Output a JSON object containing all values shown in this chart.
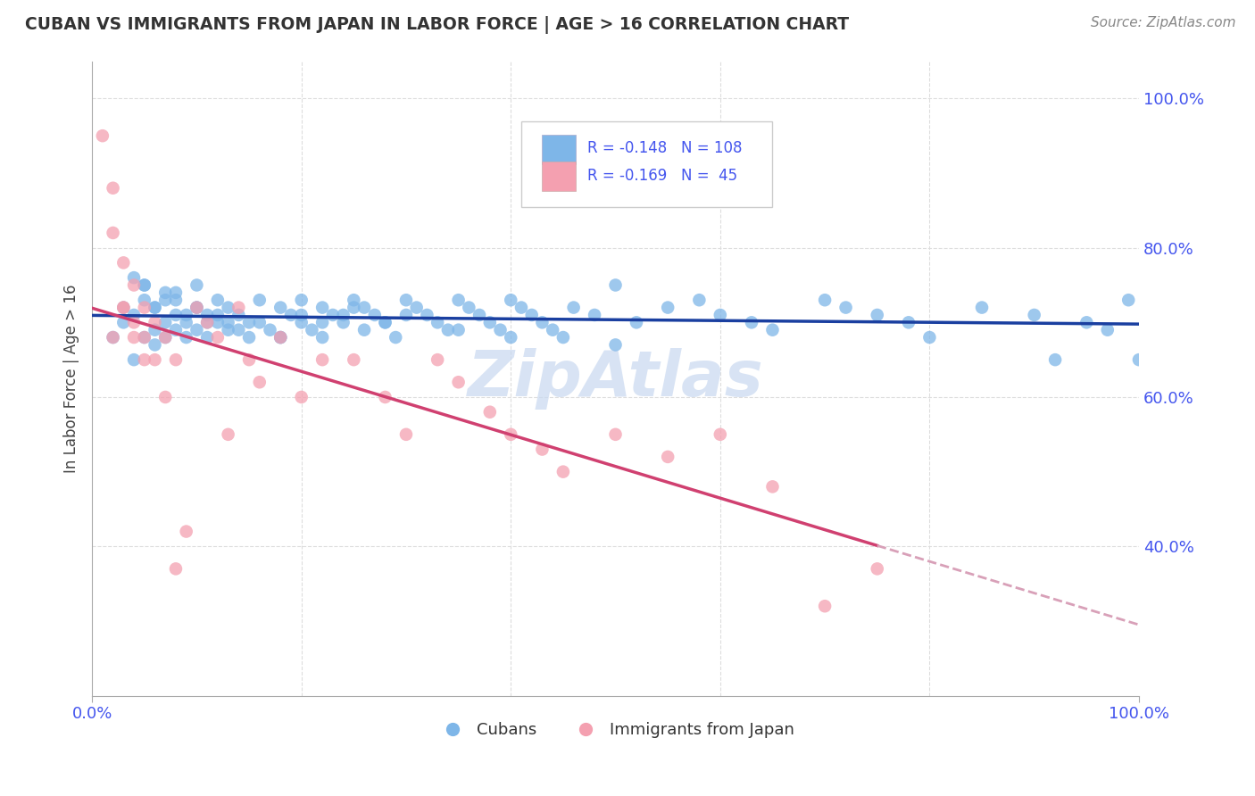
{
  "title": "CUBAN VS IMMIGRANTS FROM JAPAN IN LABOR FORCE | AGE > 16 CORRELATION CHART",
  "source": "Source: ZipAtlas.com",
  "ylabel": "In Labor Force | Age > 16",
  "legend_r1": "R = -0.148",
  "legend_n1": "N = 108",
  "legend_r2": "R = -0.169",
  "legend_n2": "N =  45",
  "blue_color": "#7EB6E8",
  "pink_color": "#F4A0B0",
  "trend_blue": "#1A3FA0",
  "trend_pink": "#D04070",
  "trend_pink_dash": "#D8A0B8",
  "watermark_color": "#C8D8F0",
  "grid_color": "#DDDDDD",
  "title_color": "#333333",
  "axis_label_color": "#4455EE",
  "yticks": [
    0.4,
    0.6,
    0.8,
    1.0
  ],
  "ytick_labels": [
    "40.0%",
    "60.0%",
    "80.0%",
    "100.0%"
  ],
  "cubans_x": [
    0.02,
    0.03,
    0.03,
    0.04,
    0.04,
    0.05,
    0.05,
    0.05,
    0.06,
    0.06,
    0.06,
    0.07,
    0.07,
    0.07,
    0.08,
    0.08,
    0.08,
    0.09,
    0.09,
    0.1,
    0.1,
    0.1,
    0.11,
    0.11,
    0.12,
    0.12,
    0.13,
    0.13,
    0.14,
    0.15,
    0.15,
    0.16,
    0.17,
    0.18,
    0.18,
    0.19,
    0.2,
    0.2,
    0.21,
    0.22,
    0.22,
    0.23,
    0.24,
    0.25,
    0.25,
    0.26,
    0.27,
    0.28,
    0.29,
    0.3,
    0.31,
    0.32,
    0.33,
    0.34,
    0.35,
    0.36,
    0.37,
    0.38,
    0.39,
    0.4,
    0.41,
    0.42,
    0.43,
    0.44,
    0.45,
    0.46,
    0.48,
    0.5,
    0.52,
    0.55,
    0.58,
    0.6,
    0.63,
    0.65,
    0.7,
    0.72,
    0.75,
    0.78,
    0.8,
    0.85,
    0.9,
    0.92,
    0.95,
    0.97,
    0.99,
    1.0,
    0.04,
    0.05,
    0.06,
    0.07,
    0.08,
    0.09,
    0.1,
    0.11,
    0.12,
    0.13,
    0.14,
    0.16,
    0.18,
    0.2,
    0.22,
    0.24,
    0.26,
    0.28,
    0.3,
    0.35,
    0.4,
    0.5
  ],
  "cubans_y": [
    0.68,
    0.7,
    0.72,
    0.65,
    0.71,
    0.68,
    0.73,
    0.75,
    0.69,
    0.72,
    0.67,
    0.7,
    0.73,
    0.68,
    0.71,
    0.69,
    0.74,
    0.7,
    0.68,
    0.72,
    0.69,
    0.75,
    0.71,
    0.68,
    0.73,
    0.7,
    0.69,
    0.72,
    0.71,
    0.7,
    0.68,
    0.73,
    0.69,
    0.72,
    0.68,
    0.71,
    0.7,
    0.73,
    0.69,
    0.72,
    0.68,
    0.71,
    0.7,
    0.73,
    0.72,
    0.69,
    0.71,
    0.7,
    0.68,
    0.73,
    0.72,
    0.71,
    0.7,
    0.69,
    0.73,
    0.72,
    0.71,
    0.7,
    0.69,
    0.73,
    0.72,
    0.71,
    0.7,
    0.69,
    0.68,
    0.72,
    0.71,
    0.75,
    0.7,
    0.72,
    0.73,
    0.71,
    0.7,
    0.69,
    0.73,
    0.72,
    0.71,
    0.7,
    0.68,
    0.72,
    0.71,
    0.65,
    0.7,
    0.69,
    0.73,
    0.65,
    0.76,
    0.75,
    0.72,
    0.74,
    0.73,
    0.71,
    0.72,
    0.7,
    0.71,
    0.7,
    0.69,
    0.7,
    0.68,
    0.71,
    0.7,
    0.71,
    0.72,
    0.7,
    0.71,
    0.69,
    0.68,
    0.67
  ],
  "japan_x": [
    0.01,
    0.02,
    0.02,
    0.03,
    0.03,
    0.04,
    0.04,
    0.05,
    0.05,
    0.06,
    0.07,
    0.08,
    0.09,
    0.1,
    0.11,
    0.12,
    0.13,
    0.14,
    0.15,
    0.16,
    0.18,
    0.2,
    0.22,
    0.25,
    0.28,
    0.3,
    0.33,
    0.35,
    0.38,
    0.4,
    0.43,
    0.45,
    0.5,
    0.55,
    0.6,
    0.65,
    0.7,
    0.75,
    0.02,
    0.03,
    0.04,
    0.05,
    0.06,
    0.07,
    0.08
  ],
  "japan_y": [
    0.95,
    0.88,
    0.82,
    0.78,
    0.72,
    0.75,
    0.68,
    0.72,
    0.65,
    0.7,
    0.68,
    0.65,
    0.42,
    0.72,
    0.7,
    0.68,
    0.55,
    0.72,
    0.65,
    0.62,
    0.68,
    0.6,
    0.65,
    0.65,
    0.6,
    0.55,
    0.65,
    0.62,
    0.58,
    0.55,
    0.53,
    0.5,
    0.55,
    0.52,
    0.55,
    0.48,
    0.32,
    0.37,
    0.68,
    0.72,
    0.7,
    0.68,
    0.65,
    0.6,
    0.37
  ]
}
